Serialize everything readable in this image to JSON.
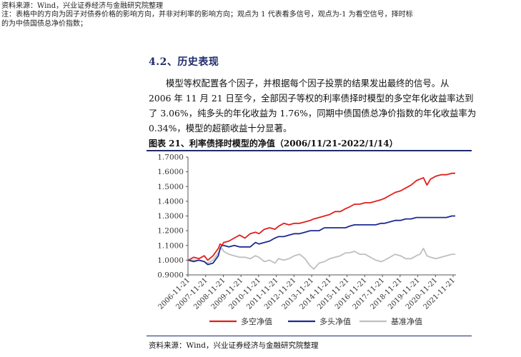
{
  "header_notes": {
    "source": "资料来源：Wind，兴业证券经济与金融研究院整理",
    "note_line1": "注：表格中的方向为因子对债券价格的影响方向，并非对利率的影响方向；观点为 1 代表看多信号，观点为-1 为看空信号，择时标",
    "note_line2": "的为中债国债总净价指数；"
  },
  "section": {
    "title": "4.2、历史表现"
  },
  "paragraph": {
    "line1": "模型等权配置各个因子，并根据每个因子投票的结果发出最终的信号。从",
    "line2": "2006 年 11 月 21 日至今，全部因子等权的利率债择时模型的多空年化收益率达到",
    "line3": "了 3.06%，纯多头的年化收益为 1.76%，同期中债国债总净价指数的年化收益率为",
    "line4": "0.34%，模型的超额收益十分显著。"
  },
  "figure": {
    "title": "图表 21、利率债择时模型的净值（2006/11/21-2022/1/14）",
    "source": "资料来源：Wind，兴业证券经济与金融研究院整理"
  },
  "chart_data": {
    "type": "line",
    "ylim": [
      0.9,
      1.7
    ],
    "y_ticks": [
      "0.9000",
      "1.0000",
      "1.1000",
      "1.2000",
      "1.3000",
      "1.4000",
      "1.5000",
      "1.6000",
      "1.7000"
    ],
    "x_ticks": [
      "2006-11-21",
      "2007-11-21",
      "2008-11-21",
      "2009-11-21",
      "2010-11-21",
      "2011-11-21",
      "2012-11-21",
      "2013-11-21",
      "2014-11-21",
      "2015-11-21",
      "2016-11-21",
      "2017-11-21",
      "2018-11-21",
      "2019-11-21",
      "2020-11-21",
      "2021-11-21"
    ],
    "x": [
      2006.9,
      2007.2,
      2007.5,
      2007.8,
      2008.0,
      2008.3,
      2008.6,
      2008.7,
      2008.8,
      2008.9,
      2009.2,
      2009.5,
      2009.8,
      2010.1,
      2010.4,
      2010.7,
      2010.9,
      2011.2,
      2011.5,
      2011.8,
      2012.0,
      2012.3,
      2012.6,
      2012.9,
      2013.2,
      2013.5,
      2013.8,
      2014.0,
      2014.3,
      2014.6,
      2014.9,
      2015.2,
      2015.5,
      2015.8,
      2016.0,
      2016.3,
      2016.6,
      2016.9,
      2017.2,
      2017.5,
      2017.8,
      2018.0,
      2018.3,
      2018.6,
      2018.9,
      2019.2,
      2019.5,
      2019.8,
      2020.0,
      2020.2,
      2020.4,
      2020.6,
      2020.9,
      2021.2,
      2021.5,
      2021.8,
      2022.0
    ],
    "series": [
      {
        "name": "多空净值",
        "color": "#e0201b",
        "values": [
          1.0,
          1.02,
          1.01,
          1.03,
          1.0,
          1.03,
          1.08,
          1.11,
          1.1,
          1.12,
          1.13,
          1.15,
          1.17,
          1.15,
          1.18,
          1.19,
          1.18,
          1.21,
          1.22,
          1.21,
          1.23,
          1.25,
          1.24,
          1.25,
          1.25,
          1.26,
          1.27,
          1.28,
          1.29,
          1.3,
          1.31,
          1.33,
          1.33,
          1.35,
          1.36,
          1.38,
          1.38,
          1.39,
          1.39,
          1.4,
          1.41,
          1.42,
          1.44,
          1.46,
          1.47,
          1.49,
          1.51,
          1.54,
          1.55,
          1.56,
          1.51,
          1.55,
          1.57,
          1.58,
          1.58,
          1.59,
          1.59
        ]
      },
      {
        "name": "多头净值",
        "color": "#1f2a8f",
        "values": [
          1.0,
          0.99,
          1.0,
          0.99,
          0.97,
          0.98,
          1.03,
          1.08,
          1.1,
          1.1,
          1.09,
          1.1,
          1.09,
          1.09,
          1.09,
          1.12,
          1.11,
          1.12,
          1.13,
          1.15,
          1.16,
          1.16,
          1.17,
          1.18,
          1.18,
          1.19,
          1.2,
          1.2,
          1.2,
          1.22,
          1.22,
          1.22,
          1.22,
          1.22,
          1.23,
          1.24,
          1.24,
          1.24,
          1.24,
          1.24,
          1.25,
          1.25,
          1.26,
          1.27,
          1.27,
          1.28,
          1.28,
          1.29,
          1.29,
          1.29,
          1.29,
          1.29,
          1.29,
          1.29,
          1.29,
          1.3,
          1.3
        ]
      },
      {
        "name": "基准净值",
        "color": "#bfbfbf",
        "values": [
          1.0,
          1.0,
          1.0,
          0.99,
          0.98,
          1.0,
          1.05,
          1.07,
          1.08,
          1.06,
          1.04,
          1.03,
          1.02,
          1.02,
          1.01,
          1.03,
          1.02,
          0.99,
          1.0,
          0.98,
          1.01,
          1.0,
          1.01,
          1.03,
          1.04,
          1.01,
          0.96,
          0.94,
          0.98,
          0.99,
          1.01,
          1.02,
          1.03,
          1.05,
          1.05,
          1.06,
          1.04,
          1.04,
          1.02,
          1.0,
          0.99,
          1.0,
          1.02,
          1.04,
          1.03,
          1.01,
          1.01,
          1.03,
          1.04,
          1.08,
          1.03,
          1.02,
          1.01,
          1.02,
          1.03,
          1.04,
          1.04
        ]
      }
    ],
    "legend": [
      "多空净值",
      "多头净值",
      "基准净值"
    ],
    "legend_position": "bottom",
    "grid": false
  }
}
